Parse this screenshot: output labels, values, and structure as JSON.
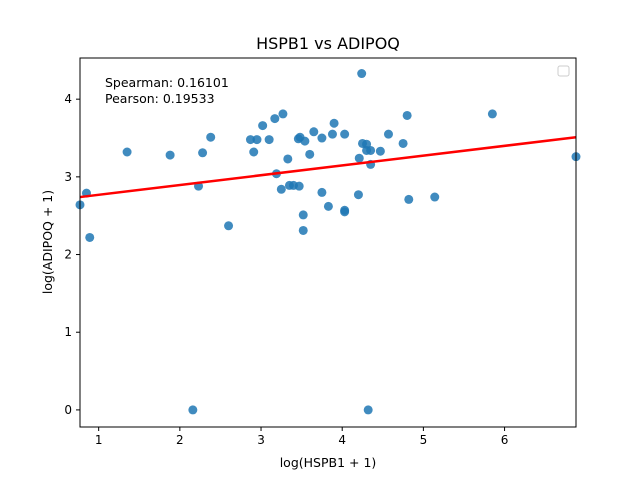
{
  "chart_data": {
    "type": "scatter",
    "title": "HSPB1 vs ADIPOQ",
    "xlabel": "log(HSPB1 + 1)",
    "ylabel": "log(ADIPOQ + 1)",
    "xlim": [
      0.77,
      6.88
    ],
    "ylim": [
      -0.22,
      4.53
    ],
    "x_ticks": [
      1,
      2,
      3,
      4,
      5,
      6
    ],
    "y_ticks": [
      0,
      1,
      2,
      3,
      4
    ],
    "grid": false,
    "legend": "top-right (empty)",
    "annotations": [
      "Spearman: 0.16101",
      "Pearson: 0.19533"
    ],
    "regression_line": {
      "x": [
        0.77,
        6.88
      ],
      "y": [
        2.74,
        3.51
      ],
      "color": "#ff0000"
    },
    "point_color": "#1f77b4",
    "points": [
      {
        "x": 0.77,
        "y": 2.64
      },
      {
        "x": 0.85,
        "y": 2.79
      },
      {
        "x": 0.89,
        "y": 2.22
      },
      {
        "x": 1.35,
        "y": 3.32
      },
      {
        "x": 1.88,
        "y": 3.28
      },
      {
        "x": 2.16,
        "y": 0.0
      },
      {
        "x": 2.23,
        "y": 2.88
      },
      {
        "x": 2.28,
        "y": 3.31
      },
      {
        "x": 2.38,
        "y": 3.51
      },
      {
        "x": 2.6,
        "y": 2.37
      },
      {
        "x": 2.87,
        "y": 3.48
      },
      {
        "x": 2.91,
        "y": 3.32
      },
      {
        "x": 2.95,
        "y": 3.48
      },
      {
        "x": 3.02,
        "y": 3.66
      },
      {
        "x": 3.1,
        "y": 3.48
      },
      {
        "x": 3.17,
        "y": 3.75
      },
      {
        "x": 3.19,
        "y": 3.04
      },
      {
        "x": 3.25,
        "y": 2.84
      },
      {
        "x": 3.27,
        "y": 3.81
      },
      {
        "x": 3.33,
        "y": 3.23
      },
      {
        "x": 3.35,
        "y": 2.89
      },
      {
        "x": 3.4,
        "y": 2.89
      },
      {
        "x": 3.46,
        "y": 3.49
      },
      {
        "x": 3.48,
        "y": 3.51
      },
      {
        "x": 3.47,
        "y": 2.88
      },
      {
        "x": 3.52,
        "y": 2.51
      },
      {
        "x": 3.52,
        "y": 2.31
      },
      {
        "x": 3.54,
        "y": 3.46
      },
      {
        "x": 3.6,
        "y": 3.29
      },
      {
        "x": 3.65,
        "y": 3.58
      },
      {
        "x": 3.75,
        "y": 3.5
      },
      {
        "x": 3.75,
        "y": 2.8
      },
      {
        "x": 3.83,
        "y": 2.62
      },
      {
        "x": 3.88,
        "y": 3.55
      },
      {
        "x": 3.9,
        "y": 3.69
      },
      {
        "x": 4.03,
        "y": 2.55
      },
      {
        "x": 4.03,
        "y": 2.57
      },
      {
        "x": 4.03,
        "y": 3.55
      },
      {
        "x": 4.2,
        "y": 2.77
      },
      {
        "x": 4.21,
        "y": 3.24
      },
      {
        "x": 4.24,
        "y": 4.33
      },
      {
        "x": 4.25,
        "y": 3.43
      },
      {
        "x": 4.3,
        "y": 3.42
      },
      {
        "x": 4.3,
        "y": 3.34
      },
      {
        "x": 4.32,
        "y": 0.0
      },
      {
        "x": 4.35,
        "y": 3.34
      },
      {
        "x": 4.35,
        "y": 3.16
      },
      {
        "x": 4.47,
        "y": 3.33
      },
      {
        "x": 4.57,
        "y": 3.55
      },
      {
        "x": 4.75,
        "y": 3.43
      },
      {
        "x": 4.8,
        "y": 3.79
      },
      {
        "x": 4.82,
        "y": 2.71
      },
      {
        "x": 5.14,
        "y": 2.74
      },
      {
        "x": 5.85,
        "y": 3.81
      },
      {
        "x": 6.88,
        "y": 3.26
      }
    ]
  }
}
